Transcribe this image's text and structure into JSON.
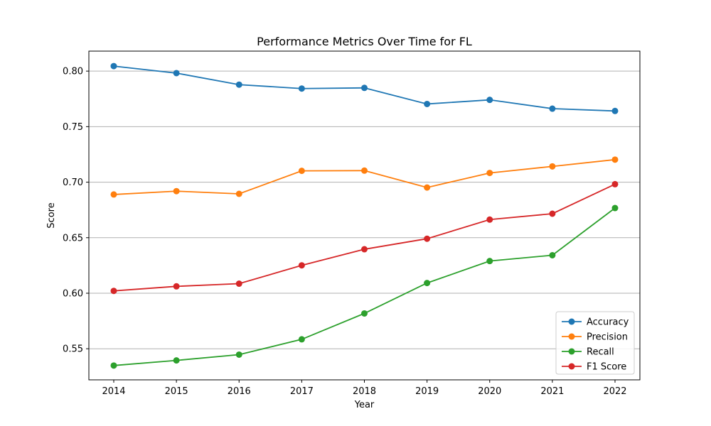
{
  "chart_data": {
    "type": "line",
    "title": "Performance Metrics Over Time for FL",
    "xlabel": "Year",
    "ylabel": "Score",
    "x": [
      "2014",
      "2015",
      "2016",
      "2017",
      "2018",
      "2019",
      "2020",
      "2021",
      "2022"
    ],
    "y_ticks": [
      "0.55",
      "0.60",
      "0.65",
      "0.70",
      "0.75",
      "0.80"
    ],
    "ylim": [
      0.522,
      0.818
    ],
    "grid": "horizontal",
    "legend_position": "lower-right",
    "series": [
      {
        "name": "Accuracy",
        "color": "#1f77b4",
        "values": [
          0.8045,
          0.7982,
          0.7878,
          0.7843,
          0.7849,
          0.7704,
          0.7741,
          0.7662,
          0.7641
        ]
      },
      {
        "name": "Precision",
        "color": "#ff7f0e",
        "values": [
          0.6889,
          0.6919,
          0.6895,
          0.7102,
          0.7104,
          0.6952,
          0.7083,
          0.7142,
          0.7203
        ]
      },
      {
        "name": "Recall",
        "color": "#2ca02c",
        "values": [
          0.5349,
          0.5395,
          0.5447,
          0.5585,
          0.5818,
          0.6092,
          0.629,
          0.6342,
          0.6767
        ]
      },
      {
        "name": "F1 Score",
        "color": "#d62728",
        "values": [
          0.6021,
          0.6062,
          0.6086,
          0.6251,
          0.6396,
          0.6491,
          0.6663,
          0.6716,
          0.6982
        ]
      }
    ]
  }
}
